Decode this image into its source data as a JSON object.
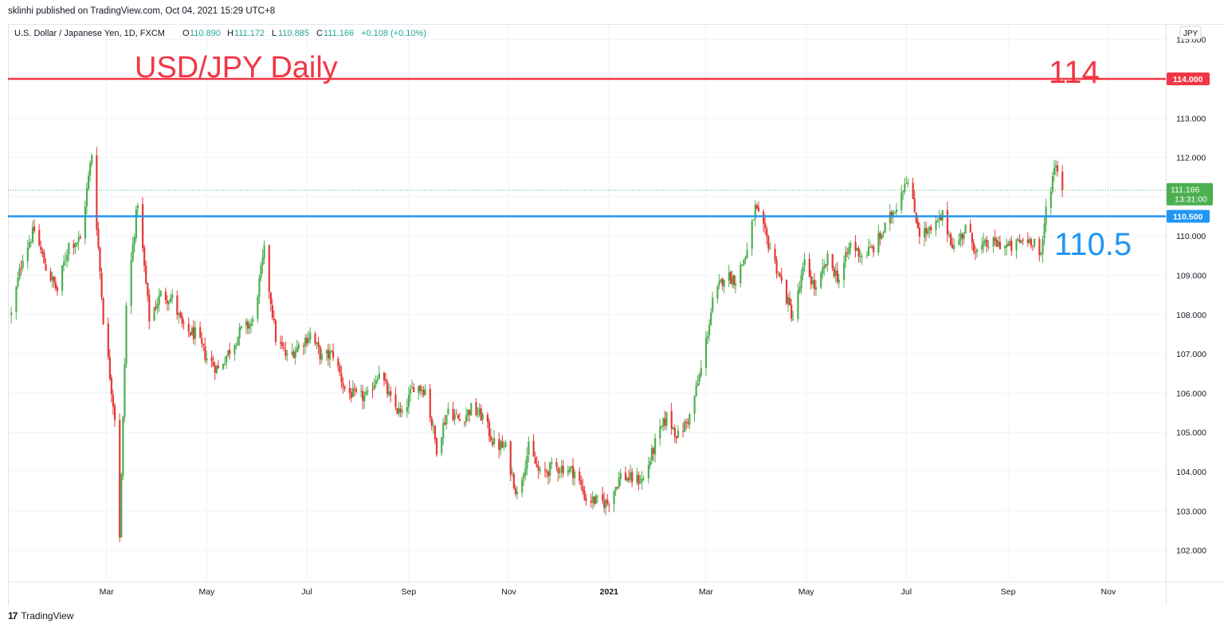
{
  "header": {
    "published": "sklinhi published on TradingView.com, Oct 04, 2021 15:29 UTC+8",
    "symbol": "U.S. Dollar / Japanese Yen, 1D, FXCM",
    "o_label": "O",
    "o_value": "110.890",
    "h_label": "H",
    "h_value": "111.172",
    "l_label": "L",
    "l_value": "110.885",
    "c_label": "C",
    "c_value": "111.166",
    "change": "+0.108 (+0.10%)",
    "currency_badge": "JPY"
  },
  "annotations": {
    "title": "USD/JPY Daily",
    "label_114": "114",
    "label_110_5": "110.5"
  },
  "footer": {
    "brand": "TradingView",
    "logo": "17"
  },
  "colors": {
    "up": "#4caf50",
    "down": "#e53935",
    "line_114": "#f23645",
    "line_110_5": "#2196f3",
    "last_price": "#4caf50",
    "grid": "#f0f3fa"
  },
  "chart_data": {
    "type": "candlestick",
    "title": "USD/JPY Daily",
    "x_ticks": [
      "Mar",
      "May",
      "Jul",
      "Sep",
      "Nov",
      "2021",
      "Mar",
      "May",
      "Jul",
      "Sep",
      "Nov"
    ],
    "y_ticks": [
      "115.000",
      "113.000",
      "112.000",
      "111.000",
      "110.000",
      "109.000",
      "108.000",
      "107.000",
      "106.000",
      "105.000",
      "104.000",
      "103.000",
      "102.000"
    ],
    "ylim": [
      101.2,
      115.4
    ],
    "horizontal_lines": [
      {
        "value": 114.0,
        "label": "114.000",
        "color": "#f23645"
      },
      {
        "value": 110.5,
        "label": "110.500",
        "color": "#2196f3"
      }
    ],
    "last_price": {
      "value": 111.166,
      "label": "111.166",
      "countdown": "13:31:00"
    },
    "weekly_close_path": [
      {
        "date": "2020-01-03",
        "close": 108.0
      },
      {
        "date": "2020-01-10",
        "close": 109.5
      },
      {
        "date": "2020-01-17",
        "close": 110.15
      },
      {
        "date": "2020-01-24",
        "close": 109.2
      },
      {
        "date": "2020-01-31",
        "close": 108.6
      },
      {
        "date": "2020-02-07",
        "close": 109.8
      },
      {
        "date": "2020-02-14",
        "close": 109.9
      },
      {
        "date": "2020-02-21",
        "close": 112.1
      },
      {
        "date": "2020-02-28",
        "close": 107.9
      },
      {
        "date": "2020-03-06",
        "close": 105.4
      },
      {
        "date": "2020-03-09",
        "close": 102.4
      },
      {
        "date": "2020-03-13",
        "close": 108.2
      },
      {
        "date": "2020-03-20",
        "close": 110.9
      },
      {
        "date": "2020-03-27",
        "close": 107.9
      },
      {
        "date": "2020-04-03",
        "close": 108.5
      },
      {
        "date": "2020-04-10",
        "close": 108.4
      },
      {
        "date": "2020-04-17",
        "close": 107.6
      },
      {
        "date": "2020-04-24",
        "close": 107.5
      },
      {
        "date": "2020-05-01",
        "close": 106.9
      },
      {
        "date": "2020-05-08",
        "close": 106.6
      },
      {
        "date": "2020-05-15",
        "close": 107.1
      },
      {
        "date": "2020-05-22",
        "close": 107.6
      },
      {
        "date": "2020-05-29",
        "close": 107.8
      },
      {
        "date": "2020-06-05",
        "close": 109.6
      },
      {
        "date": "2020-06-12",
        "close": 107.4
      },
      {
        "date": "2020-06-19",
        "close": 106.9
      },
      {
        "date": "2020-06-26",
        "close": 107.2
      },
      {
        "date": "2020-07-03",
        "close": 107.5
      },
      {
        "date": "2020-07-10",
        "close": 106.9
      },
      {
        "date": "2020-07-17",
        "close": 107.0
      },
      {
        "date": "2020-07-24",
        "close": 106.1
      },
      {
        "date": "2020-07-31",
        "close": 105.9
      },
      {
        "date": "2020-08-07",
        "close": 105.9
      },
      {
        "date": "2020-08-14",
        "close": 106.6
      },
      {
        "date": "2020-08-21",
        "close": 105.8
      },
      {
        "date": "2020-08-28",
        "close": 105.4
      },
      {
        "date": "2020-09-04",
        "close": 106.2
      },
      {
        "date": "2020-09-11",
        "close": 106.1
      },
      {
        "date": "2020-09-18",
        "close": 104.6
      },
      {
        "date": "2020-09-25",
        "close": 105.6
      },
      {
        "date": "2020-10-02",
        "close": 105.3
      },
      {
        "date": "2020-10-09",
        "close": 105.6
      },
      {
        "date": "2020-10-16",
        "close": 105.4
      },
      {
        "date": "2020-10-23",
        "close": 104.7
      },
      {
        "date": "2020-10-30",
        "close": 104.6
      },
      {
        "date": "2020-11-06",
        "close": 103.4
      },
      {
        "date": "2020-11-13",
        "close": 104.6
      },
      {
        "date": "2020-11-20",
        "close": 103.9
      },
      {
        "date": "2020-11-27",
        "close": 104.1
      },
      {
        "date": "2020-12-04",
        "close": 104.1
      },
      {
        "date": "2020-12-11",
        "close": 104.0
      },
      {
        "date": "2020-12-18",
        "close": 103.3
      },
      {
        "date": "2020-12-31",
        "close": 103.2
      },
      {
        "date": "2021-01-08",
        "close": 103.9
      },
      {
        "date": "2021-01-15",
        "close": 103.8
      },
      {
        "date": "2021-01-22",
        "close": 103.8
      },
      {
        "date": "2021-01-29",
        "close": 104.7
      },
      {
        "date": "2021-02-05",
        "close": 105.4
      },
      {
        "date": "2021-02-12",
        "close": 104.9
      },
      {
        "date": "2021-02-19",
        "close": 105.4
      },
      {
        "date": "2021-02-26",
        "close": 106.6
      },
      {
        "date": "2021-03-05",
        "close": 108.3
      },
      {
        "date": "2021-03-12",
        "close": 109.0
      },
      {
        "date": "2021-03-19",
        "close": 108.9
      },
      {
        "date": "2021-03-26",
        "close": 109.6
      },
      {
        "date": "2021-03-31",
        "close": 110.7
      },
      {
        "date": "2021-04-09",
        "close": 109.7
      },
      {
        "date": "2021-04-16",
        "close": 108.8
      },
      {
        "date": "2021-04-23",
        "close": 107.9
      },
      {
        "date": "2021-04-30",
        "close": 109.3
      },
      {
        "date": "2021-05-07",
        "close": 108.6
      },
      {
        "date": "2021-05-14",
        "close": 109.4
      },
      {
        "date": "2021-05-21",
        "close": 108.9
      },
      {
        "date": "2021-05-28",
        "close": 109.8
      },
      {
        "date": "2021-06-04",
        "close": 109.5
      },
      {
        "date": "2021-06-11",
        "close": 109.7
      },
      {
        "date": "2021-06-18",
        "close": 110.2
      },
      {
        "date": "2021-06-25",
        "close": 110.8
      },
      {
        "date": "2021-07-01",
        "close": 111.5
      },
      {
        "date": "2021-07-09",
        "close": 110.1
      },
      {
        "date": "2021-07-16",
        "close": 110.1
      },
      {
        "date": "2021-07-23",
        "close": 110.5
      },
      {
        "date": "2021-07-30",
        "close": 109.7
      },
      {
        "date": "2021-08-06",
        "close": 110.2
      },
      {
        "date": "2021-08-13",
        "close": 109.6
      },
      {
        "date": "2021-08-20",
        "close": 109.8
      },
      {
        "date": "2021-08-27",
        "close": 109.8
      },
      {
        "date": "2021-09-03",
        "close": 109.7
      },
      {
        "date": "2021-09-10",
        "close": 109.9
      },
      {
        "date": "2021-09-17",
        "close": 109.9
      },
      {
        "date": "2021-09-21",
        "close": 109.4
      },
      {
        "date": "2021-09-24",
        "close": 110.7
      },
      {
        "date": "2021-09-30",
        "close": 111.9
      },
      {
        "date": "2021-10-04",
        "close": 111.166
      }
    ],
    "grid": true,
    "price_scale": "right"
  }
}
